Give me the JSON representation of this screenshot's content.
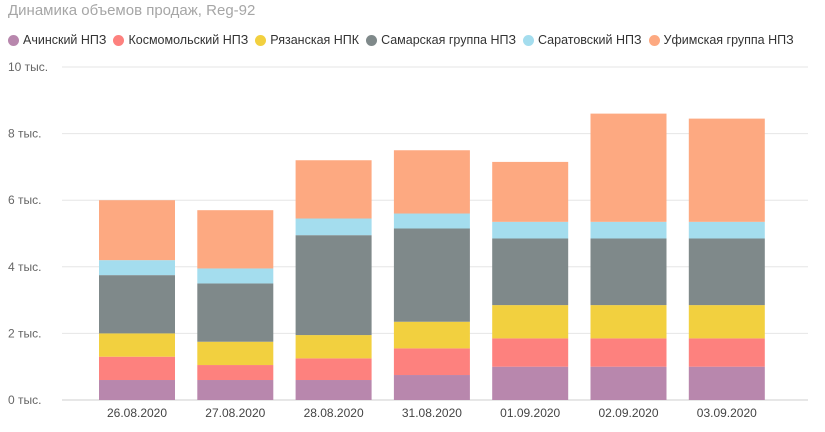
{
  "chart_data": {
    "type": "bar",
    "stacked": true,
    "title": "Динамика объемов продаж, Reg-92",
    "categories": [
      "26.08.2020",
      "27.08.2020",
      "28.08.2020",
      "31.08.2020",
      "01.09.2020",
      "02.09.2020",
      "03.09.2020"
    ],
    "series": [
      {
        "name": "Ачинский НПЗ",
        "color": "#b887ad",
        "values": [
          600,
          600,
          600,
          750,
          1000,
          1000,
          1000
        ]
      },
      {
        "name": "Космомольский НПЗ",
        "color": "#fd817e",
        "values": [
          700,
          450,
          650,
          800,
          850,
          850,
          850
        ]
      },
      {
        "name": "Рязанская НПК",
        "color": "#f2d03f",
        "values": [
          700,
          700,
          700,
          800,
          1000,
          1000,
          1000
        ]
      },
      {
        "name": "Самарская группа НПЗ",
        "color": "#7f898a",
        "values": [
          1750,
          1750,
          3000,
          2800,
          2000,
          2000,
          2000
        ]
      },
      {
        "name": "Саратовский НПЗ",
        "color": "#a4ddee",
        "values": [
          450,
          450,
          500,
          450,
          500,
          500,
          500
        ]
      },
      {
        "name": "Уфимская группа НПЗ",
        "color": "#fda981",
        "values": [
          1800,
          1750,
          1750,
          1900,
          1800,
          3250,
          3100
        ]
      }
    ],
    "y_ticks": [
      0,
      2000,
      4000,
      6000,
      8000,
      10000
    ],
    "y_tick_labels": [
      "0 тыс.",
      "2 тыс.",
      "4 тыс.",
      "6 тыс.",
      "8 тыс.",
      "10 тыс."
    ],
    "ylim": [
      0,
      10000
    ],
    "xlabel": "",
    "ylabel": "",
    "grid": true,
    "legend_position": "top-left"
  }
}
